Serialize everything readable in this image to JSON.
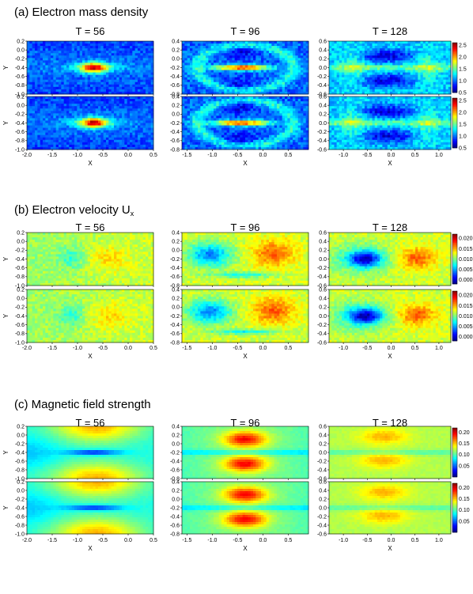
{
  "chart_data": [
    {
      "type": "heatmap",
      "title": "(a) Electron mass density",
      "columns": [
        {
          "title": "T = 56",
          "xticks": [
            "-2.0",
            "-1.5",
            "-1.0",
            "-0.5",
            "0.0",
            "0.5"
          ],
          "yticks": [
            "0.2",
            "0.0",
            "-0.2",
            "-0.4",
            "-0.6",
            "-0.8",
            "-1.0"
          ],
          "xlim": [
            -2.0,
            0.5
          ],
          "ylim": [
            -1.0,
            0.2
          ],
          "pattern": "density"
        },
        {
          "title": "T = 96",
          "xticks": [
            "-1.5",
            "-1.0",
            "-0.5",
            "0.0",
            "0.5"
          ],
          "yticks": [
            "0.4",
            "0.2",
            "0.0",
            "-0.2",
            "-0.4",
            "-0.6",
            "-0.8"
          ],
          "xlim": [
            -1.6,
            0.9
          ],
          "ylim": [
            -0.8,
            0.4
          ],
          "pattern": "density"
        },
        {
          "title": "T = 128",
          "xticks": [
            "-1.0",
            "-0.5",
            "0.0",
            "0.5",
            "1.0"
          ],
          "yticks": [
            "0.6",
            "0.4",
            "0.2",
            "0.0",
            "-0.2",
            "-0.4",
            "-0.6"
          ],
          "xlim": [
            -1.3,
            1.25
          ],
          "ylim": [
            -0.6,
            0.6
          ],
          "pattern": "density"
        }
      ],
      "colorbar_ticks": [
        "2.5",
        "2.0",
        "1.5",
        "1.0",
        "0.5"
      ],
      "colorbar_range": [
        0.5,
        2.6
      ],
      "xlabel": "X",
      "ylabel": "Y"
    },
    {
      "type": "heatmap",
      "title": "(b) Electron velocity U",
      "title_subscript": "x",
      "columns": [
        {
          "title": "T = 56",
          "xticks": [
            "-2.0",
            "-1.5",
            "-1.0",
            "-0.5",
            "0.0",
            "0.5"
          ],
          "yticks": [
            "0.2",
            "0.0",
            "-0.2",
            "-0.4",
            "-0.6",
            "-0.8",
            "-1.0"
          ],
          "xlim": [
            -2.0,
            0.5
          ],
          "ylim": [
            -1.0,
            0.2
          ],
          "pattern": "velocity"
        },
        {
          "title": "T = 96",
          "xticks": [
            "-1.5",
            "-1.0",
            "-0.5",
            "0.0",
            "0.5"
          ],
          "yticks": [
            "0.4",
            "0.2",
            "0.0",
            "-0.2",
            "-0.4",
            "-0.6",
            "-0.8"
          ],
          "xlim": [
            -1.6,
            0.9
          ],
          "ylim": [
            -0.8,
            0.4
          ],
          "pattern": "velocity"
        },
        {
          "title": "T = 128",
          "xticks": [
            "-1.0",
            "-0.5",
            "0.0",
            "0.5",
            "1.0"
          ],
          "yticks": [
            "0.6",
            "0.4",
            "0.2",
            "0.0",
            "-0.2",
            "-0.4",
            "-0.6"
          ],
          "xlim": [
            -1.3,
            1.25
          ],
          "ylim": [
            -0.6,
            0.6
          ],
          "pattern": "velocity"
        }
      ],
      "colorbar_ticks": [
        "0.020",
        "0.015",
        "0.010",
        "0.005",
        "0.000"
      ],
      "colorbar_range": [
        -0.002,
        0.022
      ],
      "xlabel": "X",
      "ylabel": "Y"
    },
    {
      "type": "heatmap",
      "title": "(c) Magnetic field strength",
      "columns": [
        {
          "title": "T = 56",
          "xticks": [
            "-2.0",
            "-1.5",
            "-1.0",
            "-0.5",
            "0.0",
            "0.5"
          ],
          "yticks": [
            "0.2",
            "0.0",
            "-0.2",
            "-0.4",
            "-0.6",
            "-0.8",
            "-1.0"
          ],
          "xlim": [
            -2.0,
            0.5
          ],
          "ylim": [
            -1.0,
            0.2
          ],
          "pattern": "bfield"
        },
        {
          "title": "T = 96",
          "xticks": [
            "-1.5",
            "-1.0",
            "-0.5",
            "0.0",
            "0.5"
          ],
          "yticks": [
            "0.4",
            "0.2",
            "0.0",
            "-0.2",
            "-0.4",
            "-0.6",
            "-0.8"
          ],
          "xlim": [
            -1.6,
            0.9
          ],
          "ylim": [
            -0.8,
            0.4
          ],
          "pattern": "bfield"
        },
        {
          "title": "T = 128",
          "xticks": [
            "-1.0",
            "-0.5",
            "0.0",
            "0.5",
            "1.0"
          ],
          "yticks": [
            "0.6",
            "0.4",
            "0.2",
            "0.0",
            "-0.2",
            "-0.4",
            "-0.6"
          ],
          "xlim": [
            -1.3,
            1.25
          ],
          "ylim": [
            -0.6,
            0.6
          ],
          "pattern": "bfield"
        }
      ],
      "colorbar_ticks": [
        "0.20",
        "0.15",
        "0.10",
        "0.05"
      ],
      "colorbar_range": [
        0.0,
        0.22
      ],
      "xlabel": "X",
      "ylabel": "Y"
    }
  ],
  "colormap": [
    "#00007f",
    "#0000ff",
    "#007fff",
    "#00ffff",
    "#7fff7f",
    "#ffff00",
    "#ff7f00",
    "#ff0000",
    "#7f0000"
  ]
}
